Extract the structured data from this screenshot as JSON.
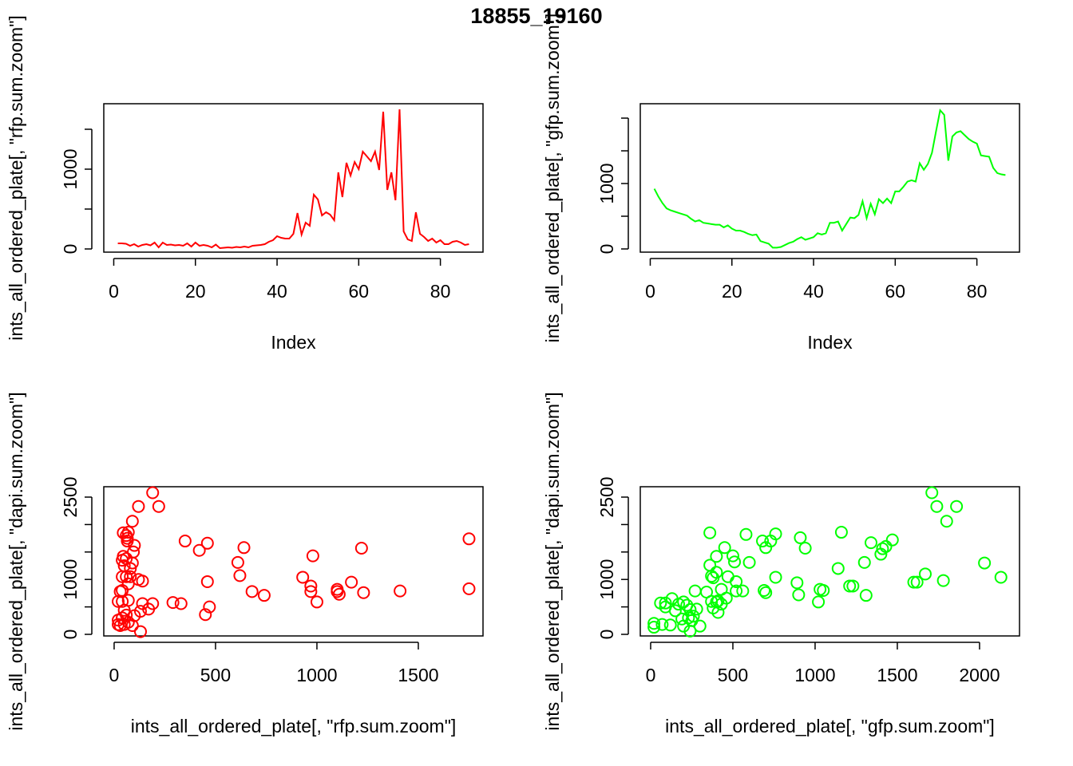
{
  "title": "18855_19160",
  "chart_data": [
    {
      "type": "line",
      "xlabel": "Index",
      "ylabel": "ints_all_ordered_plate[, \"rfp.sum.zoom\"]",
      "color": "#ff0000",
      "x": [
        1,
        2,
        3,
        4,
        5,
        6,
        7,
        8,
        9,
        10,
        11,
        12,
        13,
        14,
        15,
        16,
        17,
        18,
        19,
        20,
        21,
        22,
        23,
        24,
        25,
        26,
        27,
        28,
        29,
        30,
        31,
        32,
        33,
        34,
        35,
        36,
        37,
        38,
        39,
        40,
        41,
        42,
        43,
        44,
        45,
        46,
        47,
        48,
        49,
        50,
        51,
        52,
        53,
        54,
        55,
        56,
        57,
        58,
        59,
        60,
        61,
        62,
        63,
        64,
        65,
        66,
        67,
        68,
        69,
        70,
        71,
        72,
        73,
        74,
        75,
        76,
        77,
        78,
        79,
        80,
        81,
        82,
        83,
        84,
        85,
        86,
        87
      ],
      "values": [
        70,
        70,
        65,
        40,
        60,
        30,
        50,
        60,
        45,
        80,
        20,
        80,
        50,
        55,
        45,
        50,
        40,
        70,
        30,
        80,
        40,
        50,
        40,
        20,
        55,
        10,
        15,
        20,
        15,
        25,
        20,
        30,
        20,
        40,
        45,
        50,
        60,
        90,
        110,
        160,
        140,
        130,
        130,
        190,
        450,
        180,
        330,
        290,
        680,
        620,
        420,
        460,
        430,
        360,
        960,
        650,
        1080,
        920,
        1090,
        1000,
        1220,
        1160,
        1100,
        1220,
        990,
        1720,
        740,
        960,
        610,
        1750,
        220,
        120,
        100,
        460,
        190,
        150,
        100,
        130,
        80,
        110,
        60,
        60,
        90,
        100,
        80,
        50,
        60
      ],
      "xlim": [
        -2.44,
        90.44
      ],
      "xticks": [
        0,
        20,
        40,
        60,
        80
      ],
      "ylim": [
        -40,
        1820
      ],
      "yticks": [
        0,
        1000
      ],
      "yticks_minor": [
        500,
        1500
      ]
    },
    {
      "type": "line",
      "xlabel": "Index",
      "ylabel": "ints_all_ordered_plate[, \"gfp.sum.zoom\"]",
      "color": "#00ff00",
      "x": [
        1,
        2,
        3,
        4,
        5,
        6,
        7,
        8,
        9,
        10,
        11,
        12,
        13,
        14,
        15,
        16,
        17,
        18,
        19,
        20,
        21,
        22,
        23,
        24,
        25,
        26,
        27,
        28,
        29,
        30,
        31,
        32,
        33,
        34,
        35,
        36,
        37,
        38,
        39,
        40,
        41,
        42,
        43,
        44,
        45,
        46,
        47,
        48,
        49,
        50,
        51,
        52,
        53,
        54,
        55,
        56,
        57,
        58,
        59,
        60,
        61,
        62,
        63,
        64,
        65,
        66,
        67,
        68,
        69,
        70,
        71,
        72,
        73,
        74,
        75,
        76,
        77,
        78,
        79,
        80,
        81,
        82,
        83,
        84,
        85,
        86,
        87
      ],
      "values": [
        920,
        800,
        700,
        620,
        590,
        570,
        550,
        530,
        510,
        460,
        420,
        440,
        400,
        390,
        380,
        370,
        370,
        330,
        360,
        310,
        280,
        280,
        260,
        230,
        210,
        220,
        120,
        100,
        80,
        20,
        20,
        30,
        60,
        90,
        110,
        150,
        180,
        140,
        160,
        180,
        240,
        220,
        240,
        400,
        400,
        420,
        280,
        380,
        480,
        470,
        520,
        730,
        470,
        690,
        530,
        760,
        700,
        770,
        700,
        880,
        880,
        950,
        1030,
        1050,
        1030,
        1310,
        1210,
        1300,
        1470,
        1800,
        2120,
        2050,
        1350,
        1720,
        1780,
        1800,
        1740,
        1680,
        1640,
        1610,
        1430,
        1420,
        1410,
        1240,
        1160,
        1140,
        1130
      ],
      "xlim": [
        -2.44,
        90.44
      ],
      "xticks": [
        0,
        20,
        40,
        60,
        80
      ],
      "ylim": [
        -49,
        2220
      ],
      "yticks": [
        0,
        1000
      ],
      "yticks_minor": [
        500,
        1500,
        2000
      ]
    },
    {
      "type": "scatter",
      "xlabel": "ints_all_ordered_plate[, \"rfp.sum.zoom\"]",
      "ylabel": "ints_all_ordered_plate[, \"dapi.sum.zoom\"]",
      "color": "#ff0000",
      "x": [
        190,
        220,
        120,
        90,
        45,
        70,
        60,
        65,
        65,
        100,
        95,
        45,
        60,
        40,
        90,
        80,
        50,
        40,
        60,
        80,
        120,
        140,
        70,
        40,
        30,
        20,
        40,
        70,
        140,
        190,
        170,
        130,
        50,
        60,
        100,
        40,
        20,
        30,
        50,
        70,
        90,
        20,
        130,
        350,
        420,
        460,
        640,
        610,
        620,
        460,
        680,
        740,
        290,
        330,
        450,
        470,
        930,
        980,
        970,
        970,
        1000,
        1100,
        1110,
        1100,
        1170,
        1220,
        1230,
        1410,
        1750,
        1750
      ],
      "values": [
        2580,
        2330,
        2330,
        2060,
        1850,
        1860,
        1800,
        1750,
        1700,
        1620,
        1500,
        1420,
        1380,
        1350,
        1300,
        1200,
        1250,
        1050,
        1050,
        1050,
        1000,
        970,
        920,
        800,
        780,
        600,
        600,
        620,
        560,
        560,
        460,
        420,
        440,
        350,
        340,
        300,
        260,
        160,
        180,
        220,
        160,
        180,
        50,
        1700,
        1530,
        1660,
        1580,
        1310,
        1070,
        960,
        780,
        710,
        580,
        560,
        360,
        500,
        1040,
        1430,
        780,
        880,
        590,
        780,
        730,
        820,
        950,
        1570,
        760,
        790,
        1740,
        830
      ],
      "xlim": [
        -51,
        1819
      ],
      "xticks": [
        0,
        500,
        1000,
        1500
      ],
      "ylim": [
        -29,
        2689
      ],
      "yticks": [
        0,
        1000,
        2500
      ],
      "yticks_minor": [
        500,
        1500,
        2000
      ]
    },
    {
      "type": "scatter",
      "xlabel": "ints_all_ordered_plate[, \"gfp.sum.zoom\"]",
      "ylabel": "ints_all_ordered_plate[, \"dapi.sum.zoom\"]",
      "color": "#00ff00",
      "x": [
        1710,
        1740,
        1860,
        1800,
        360,
        580,
        680,
        760,
        730,
        700,
        910,
        940,
        1160,
        1340,
        1410,
        1430,
        1470,
        1400,
        1300,
        1140,
        1620,
        1600,
        1670,
        1780,
        2030,
        2130,
        400,
        450,
        500,
        360,
        510,
        400,
        370,
        380,
        470,
        520,
        760,
        600,
        560,
        520,
        690,
        700,
        890,
        900,
        1030,
        1050,
        1020,
        1210,
        1230,
        1310,
        270,
        340,
        430,
        370,
        400,
        410,
        430,
        380,
        410,
        460,
        200,
        220,
        130,
        90,
        60,
        90,
        170,
        150,
        240,
        230,
        260,
        190,
        250,
        200,
        120,
        70,
        20,
        20,
        240,
        300,
        280
      ],
      "values": [
        2580,
        2330,
        2330,
        2060,
        1850,
        1820,
        1700,
        1830,
        1700,
        1580,
        1760,
        1570,
        1860,
        1670,
        1560,
        1600,
        1720,
        1460,
        1310,
        1200,
        950,
        950,
        1100,
        980,
        1300,
        1040,
        1420,
        1580,
        1430,
        1260,
        1320,
        1130,
        1060,
        1030,
        1050,
        960,
        1040,
        1310,
        790,
        790,
        800,
        760,
        940,
        720,
        820,
        800,
        590,
        880,
        880,
        710,
        790,
        770,
        820,
        600,
        590,
        610,
        550,
        480,
        400,
        660,
        590,
        530,
        650,
        570,
        570,
        500,
        550,
        430,
        450,
        300,
        330,
        280,
        250,
        150,
        170,
        180,
        200,
        130,
        60,
        150,
        460
      ],
      "xlim": [
        -63,
        2243
      ],
      "xticks": [
        0,
        500,
        1000,
        1500,
        2000
      ],
      "ylim": [
        -29,
        2689
      ],
      "yticks": [
        0,
        1000,
        2500
      ],
      "yticks_minor": [
        500,
        1500,
        2000
      ]
    }
  ]
}
